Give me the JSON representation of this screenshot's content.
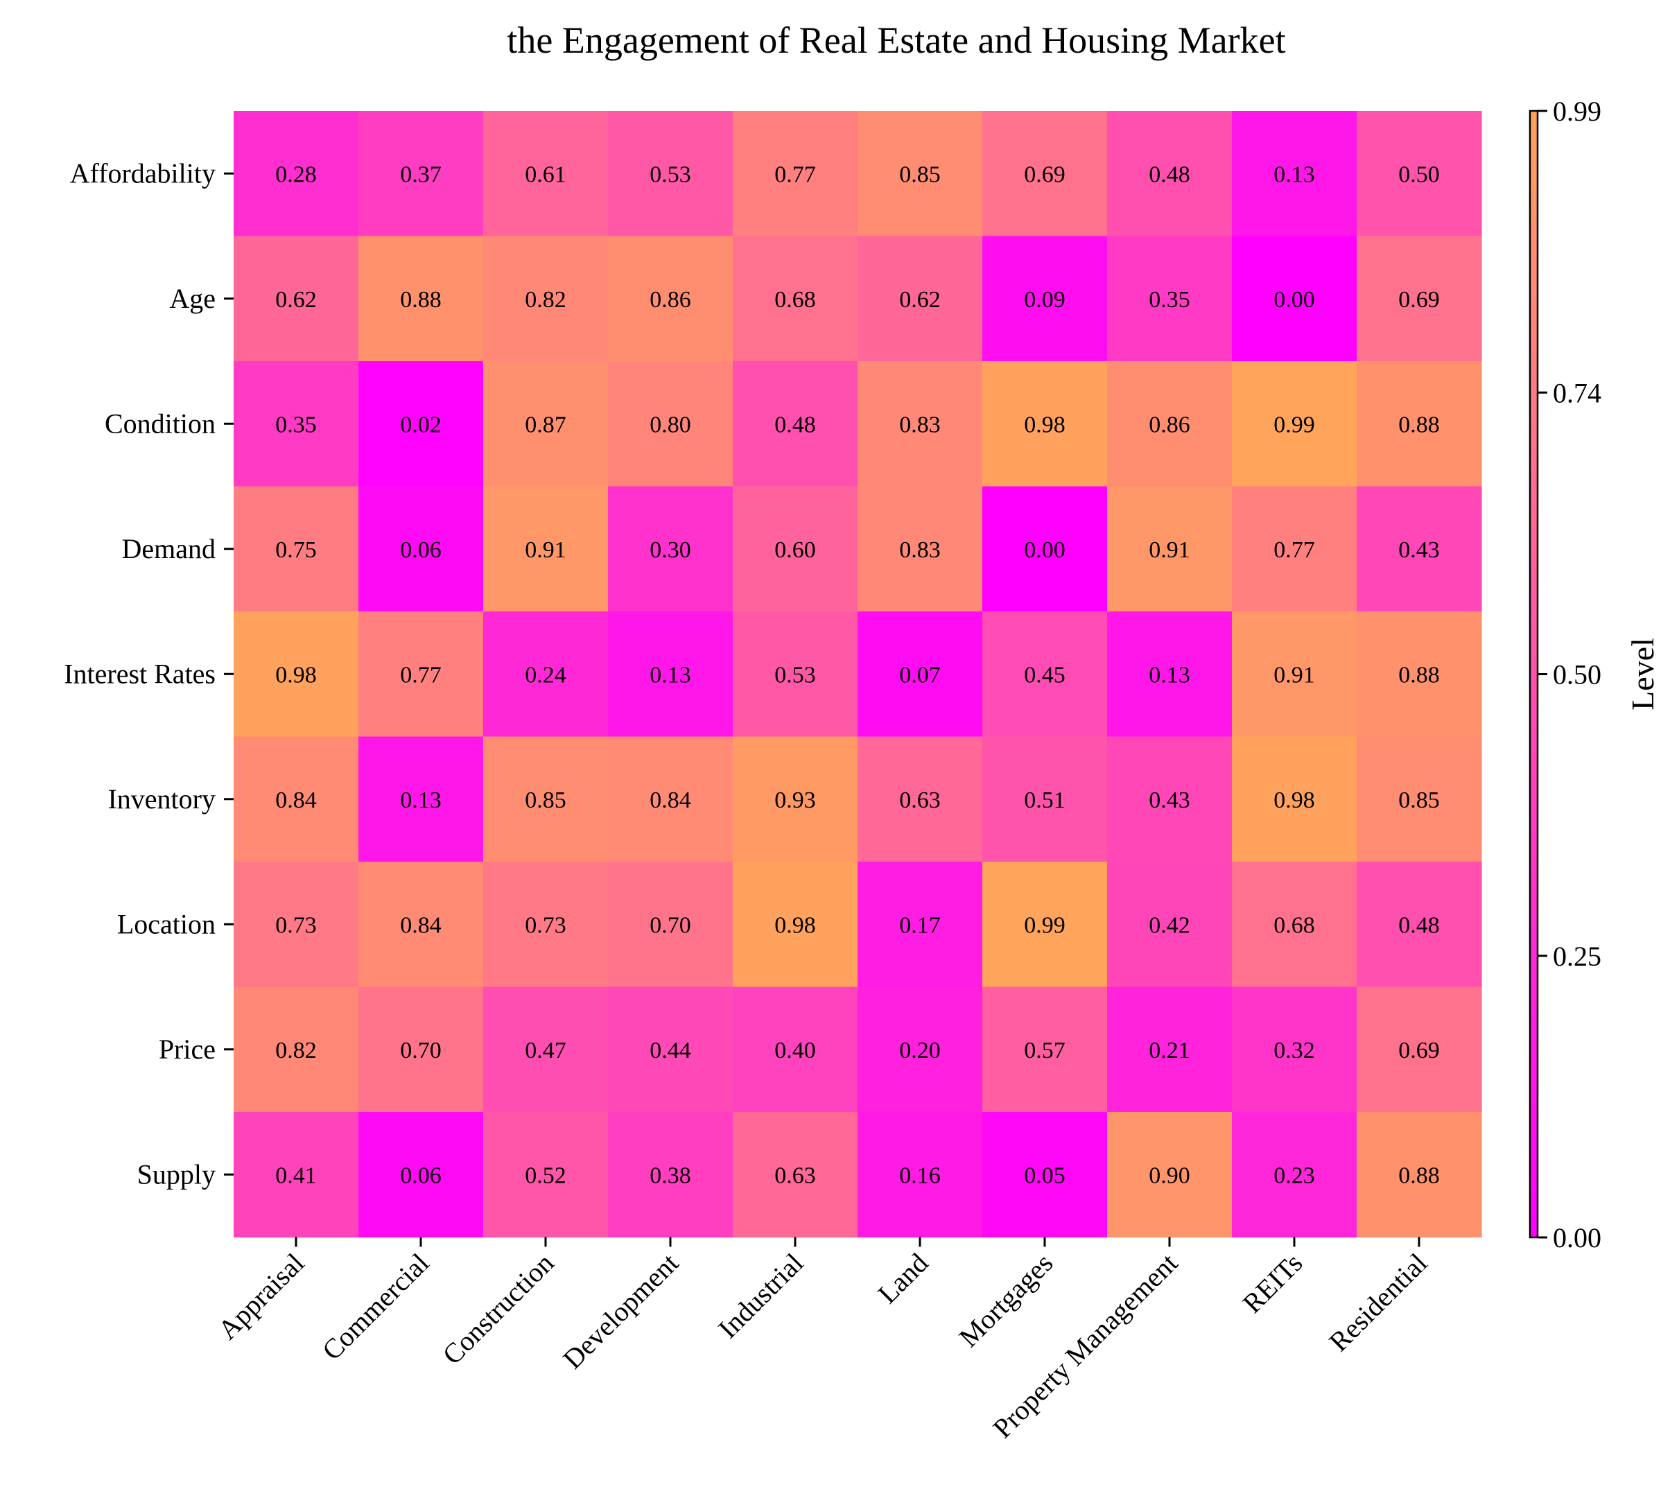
{
  "chart_data": {
    "type": "heatmap",
    "title": "the Engagement of Real Estate and Housing Market",
    "columns": [
      "Appraisal",
      "Commercial",
      "Construction",
      "Development",
      "Industrial",
      "Land",
      "Mortgages",
      "Property Management",
      "REITs",
      "Residential"
    ],
    "rows": [
      "Affordability",
      "Age",
      "Condition",
      "Demand",
      "Interest Rates",
      "Inventory",
      "Location",
      "Price",
      "Supply"
    ],
    "values": [
      [
        0.28,
        0.37,
        0.61,
        0.53,
        0.77,
        0.85,
        0.69,
        0.48,
        0.13,
        0.5
      ],
      [
        0.62,
        0.88,
        0.82,
        0.86,
        0.68,
        0.62,
        0.09,
        0.35,
        0.0,
        0.69
      ],
      [
        0.35,
        0.02,
        0.87,
        0.8,
        0.48,
        0.83,
        0.98,
        0.86,
        0.99,
        0.88
      ],
      [
        0.75,
        0.06,
        0.91,
        0.3,
        0.6,
        0.83,
        0.0,
        0.91,
        0.77,
        0.43
      ],
      [
        0.98,
        0.77,
        0.24,
        0.13,
        0.53,
        0.07,
        0.45,
        0.13,
        0.91,
        0.88
      ],
      [
        0.84,
        0.13,
        0.85,
        0.84,
        0.93,
        0.63,
        0.51,
        0.43,
        0.98,
        0.85
      ],
      [
        0.73,
        0.84,
        0.73,
        0.7,
        0.98,
        0.17,
        0.99,
        0.42,
        0.68,
        0.48
      ],
      [
        0.82,
        0.7,
        0.47,
        0.44,
        0.4,
        0.2,
        0.57,
        0.21,
        0.32,
        0.69
      ],
      [
        0.41,
        0.06,
        0.52,
        0.38,
        0.63,
        0.16,
        0.05,
        0.9,
        0.23,
        0.88
      ]
    ],
    "value_format": "0.00",
    "colormap": "spring",
    "color_range": [
      0.0,
      0.99
    ],
    "color_low": "#ff00ff",
    "color_high": "#ffa45b",
    "colorbar": {
      "label": "Level",
      "ticks": [
        "0.00",
        "0.25",
        "0.50",
        "0.74",
        "0.99"
      ],
      "tick_values": [
        0.0,
        0.2475,
        0.495,
        0.7425,
        0.99
      ],
      "position": "right"
    },
    "grid": false
  }
}
